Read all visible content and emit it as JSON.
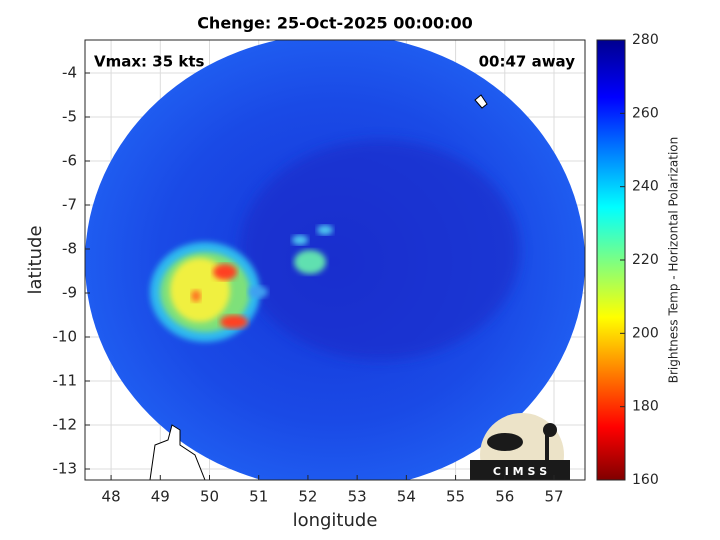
{
  "map": {
    "title": "Chenge: 25-Oct-2025 00:00:00",
    "vmax": "Vmax: 35 kts",
    "time_away": "00:47 away",
    "xlabel": "longitude",
    "ylabel": "latitude",
    "xlim": [
      47.47,
      57.63
    ],
    "ylim": [
      -13.25,
      -3.25
    ],
    "xticks": [
      48,
      49,
      50,
      51,
      52,
      53,
      54,
      55,
      56,
      57
    ],
    "yticks": [
      -13,
      -12,
      -11,
      -10,
      -9,
      -8,
      -7,
      -6,
      -5,
      -4
    ],
    "grid": true,
    "colorbar": {
      "label": "Brightness Temp - Horizontal Polarization",
      "lim": [
        160,
        280
      ],
      "ticks": [
        160,
        180,
        200,
        220,
        240,
        260,
        280
      ]
    },
    "logo": "C I M S S"
  }
}
